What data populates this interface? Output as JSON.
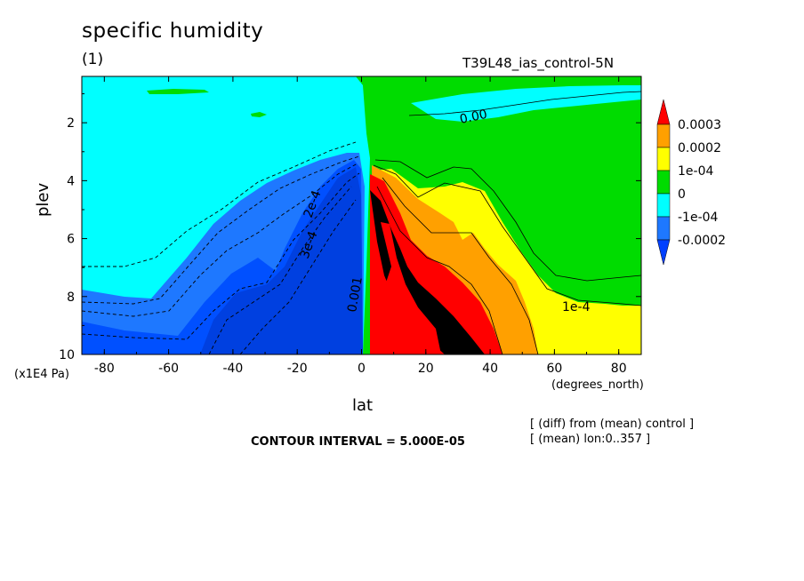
{
  "chart_data": {
    "type": "heatmap",
    "title": "specific humidity",
    "subtitle": "(1)",
    "run_name": "T39L48_ias_control-5N",
    "xlabel": "lat",
    "ylabel": "plev",
    "x_units": "(degrees_north)",
    "y_units": "(x1E4 Pa)",
    "x_ticks": [
      "-80",
      "-60",
      "-40",
      "-20",
      "0",
      "20",
      "40",
      "60",
      "80"
    ],
    "y_ticks": [
      "2",
      "4",
      "6",
      "8",
      "10"
    ],
    "xlim": [
      -87,
      87
    ],
    "ylim": [
      10,
      0.4
    ],
    "contour_interval": "CONTOUR INTERVAL = 5.000E-05",
    "notes": [
      "[ (diff) from (mean) control ]",
      "[ (mean) lon:0..357 ]"
    ],
    "contour_labels": [
      "0.00",
      "1e-4",
      "2e-4",
      "3e-4",
      "0.001"
    ],
    "legend": {
      "labels": [
        "0.0003",
        "0.0002",
        "1e-04",
        "0",
        "-1e-04",
        "-0.0002"
      ],
      "colors": [
        "#ff0000",
        "#ffa000",
        "#ffff00",
        "#00dc00",
        "#00ffff",
        "#1e78ff",
        "#0040ff"
      ]
    },
    "levels_colors": {
      "lt_m2e4": "#0050ff",
      "m2e4_m1e4": "#1e78ff",
      "m1e4_0": "#00ffff",
      "0_1e4": "#00dc00",
      "1e4_2e4": "#ffff00",
      "2e4_3e4": "#ffa000",
      "gt_3e4": "#ff0000",
      "core": "#000000"
    }
  }
}
